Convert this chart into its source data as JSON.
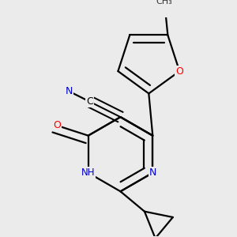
{
  "background_color": "#ebebeb",
  "bond_color": "#000000",
  "bond_width": 1.6,
  "atom_colors": {
    "N": "#0000cd",
    "O": "#ff0000",
    "C": "#000000"
  },
  "figure_size": [
    3.0,
    3.0
  ],
  "dpi": 100
}
